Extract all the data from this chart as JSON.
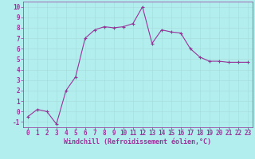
{
  "x": [
    0,
    1,
    2,
    3,
    4,
    5,
    6,
    7,
    8,
    9,
    10,
    11,
    12,
    13,
    14,
    15,
    16,
    17,
    18,
    19,
    20,
    21,
    22,
    23
  ],
  "y": [
    -0.5,
    0.2,
    0.0,
    -1.2,
    2.0,
    3.3,
    7.0,
    7.8,
    8.1,
    8.0,
    8.1,
    8.4,
    10.0,
    6.5,
    7.8,
    7.6,
    7.5,
    6.0,
    5.2,
    4.8,
    4.8,
    4.7,
    4.7,
    4.7
  ],
  "line_color": "#993399",
  "marker": "+",
  "marker_color": "#993399",
  "bg_color": "#b2eeee",
  "grid_color": "#aadddd",
  "xlabel": "Windchill (Refroidissement éolien,°C)",
  "xlabel_color": "#993399",
  "tick_color": "#993399",
  "spine_color": "#993399",
  "ylim": [
    -1.5,
    10.5
  ],
  "xlim": [
    -0.5,
    23.5
  ],
  "yticks": [
    -1,
    0,
    1,
    2,
    3,
    4,
    5,
    6,
    7,
    8,
    9,
    10
  ],
  "xticks": [
    0,
    1,
    2,
    3,
    4,
    5,
    6,
    7,
    8,
    9,
    10,
    11,
    12,
    13,
    14,
    15,
    16,
    17,
    18,
    19,
    20,
    21,
    22,
    23
  ],
  "font_size_label": 6,
  "font_size_tick": 5.5,
  "linewidth": 0.8,
  "markersize": 3
}
